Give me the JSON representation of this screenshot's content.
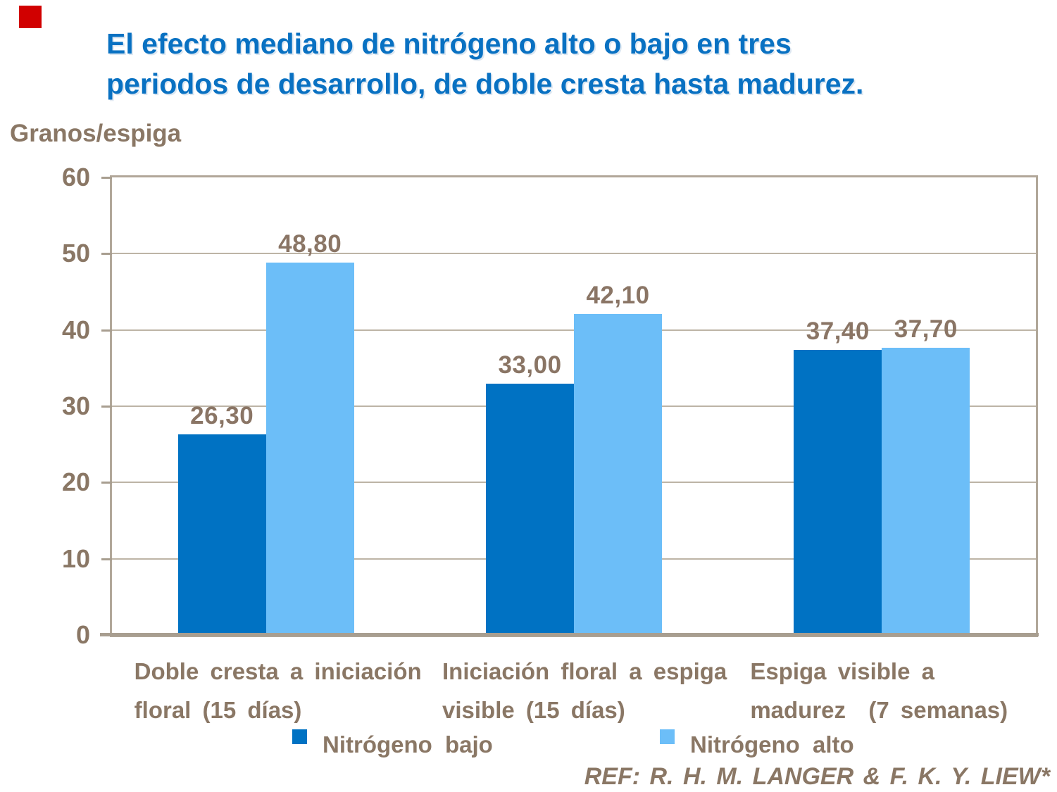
{
  "decorations": {
    "red_square_color": "#d10000"
  },
  "title": {
    "line1": "El efecto mediano de nitrógeno alto o bajo en tres",
    "line2": "periodos de desarrollo, de doble cresta hasta madurez.",
    "color": "#0971c2"
  },
  "axis_title": "Granos/espiga",
  "legend": {
    "items": [
      {
        "label": "Nitrógeno bajo",
        "color": "#0072c3"
      },
      {
        "label": "Nitrógeno alto",
        "color": "#6cbef8"
      }
    ]
  },
  "footer": {
    "ref": "REF: R. H. M. LANGER & F. K. Y. LIEW*"
  },
  "colors": {
    "title_blue": "#0971c2",
    "label_brown": "#8a7765",
    "grid_tan": "#bdb4a6",
    "border_tan": "#b1a799",
    "axis_tan": "#a89e90",
    "bar_dark_blue": "#0072c3",
    "bar_light_blue": "#6cbef8"
  },
  "chart_data": {
    "type": "bar",
    "title": "El efecto mediano de nitrógeno alto o bajo en tres periodos de desarrollo, de doble cresta hasta madurez.",
    "xlabel": "",
    "ylabel": "Granos/espiga",
    "ylim": [
      0,
      60
    ],
    "yticks": [
      0,
      10,
      20,
      30,
      40,
      50,
      60
    ],
    "grid": true,
    "legend_position": "bottom",
    "categories": [
      [
        "Doble cresta a iniciación",
        "floral (15 días)"
      ],
      [
        "Iniciación floral a espiga",
        "visible (15 días)"
      ],
      [
        "Espiga visible a",
        "madurez  (7 semanas)"
      ]
    ],
    "series": [
      {
        "name": "Nitrógeno bajo",
        "color": "#0072c3",
        "values": [
          26.3,
          33.0,
          37.4
        ]
      },
      {
        "name": "Nitrógeno alto",
        "color": "#6cbef8",
        "values": [
          48.8,
          42.1,
          37.7
        ]
      }
    ],
    "value_labels": [
      [
        "26,30",
        "33,00",
        "37,40"
      ],
      [
        "48,80",
        "42,10",
        "37,70"
      ]
    ]
  }
}
